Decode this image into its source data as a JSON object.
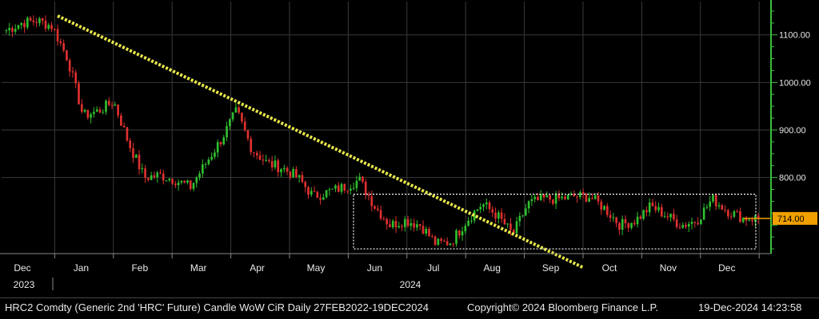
{
  "chart_data": {
    "type": "candlestick",
    "ylim": [
      640,
      1170
    ],
    "y_ticks": [
      1100,
      1000,
      900,
      800
    ],
    "last_price_label": "714.00",
    "month_labels": [
      "Dec",
      "Jan",
      "Feb",
      "Mar",
      "Apr",
      "May",
      "Jun",
      "Jul",
      "Aug",
      "Sep",
      "Oct",
      "Nov",
      "Dec"
    ],
    "year_labels": [
      "2023",
      "2024"
    ],
    "trendline": {
      "from": {
        "x": "Dec 2023",
        "y": 1140
      },
      "to": {
        "x": "Sep 2024",
        "y": 610
      }
    },
    "range_box": {
      "x_from": "Jun 2024",
      "x_to": "Dec 2024",
      "y_from": 650,
      "y_to": 765
    },
    "approx_daily_close": [
      [
        "Dec",
        1110
      ],
      [
        "Dec",
        1125
      ],
      [
        "Dec",
        1130
      ],
      [
        "Dec",
        1118
      ],
      [
        "Jan",
        1050
      ],
      [
        "Jan",
        930
      ],
      [
        "Jan",
        940
      ],
      [
        "Jan",
        960
      ],
      [
        "Feb",
        870
      ],
      [
        "Feb",
        800
      ],
      [
        "Feb",
        805
      ],
      [
        "Feb",
        795
      ],
      [
        "Mar",
        780
      ],
      [
        "Mar",
        830
      ],
      [
        "Mar",
        880
      ],
      [
        "Mar",
        940
      ],
      [
        "Apr",
        860
      ],
      [
        "Apr",
        830
      ],
      [
        "Apr",
        820
      ],
      [
        "Apr",
        800
      ],
      [
        "May",
        760
      ],
      [
        "May",
        770
      ],
      [
        "May",
        780
      ],
      [
        "May",
        795
      ],
      [
        "Jun",
        740
      ],
      [
        "Jun",
        700
      ],
      [
        "Jun",
        710
      ],
      [
        "Jun",
        700
      ],
      [
        "Jul",
        660
      ],
      [
        "Jul",
        665
      ],
      [
        "Jul",
        710
      ],
      [
        "Jul",
        745
      ],
      [
        "Aug",
        720
      ],
      [
        "Aug",
        680
      ],
      [
        "Aug",
        745
      ],
      [
        "Aug",
        755
      ],
      [
        "Sep",
        755
      ],
      [
        "Sep",
        760
      ],
      [
        "Sep",
        760
      ],
      [
        "Sep",
        735
      ],
      [
        "Oct",
        700
      ],
      [
        "Oct",
        710
      ],
      [
        "Oct",
        740
      ],
      [
        "Oct",
        720
      ],
      [
        "Nov",
        700
      ],
      [
        "Nov",
        710
      ],
      [
        "Nov",
        755
      ],
      [
        "Nov",
        730
      ],
      [
        "Dec",
        715
      ],
      [
        "Dec",
        714
      ]
    ],
    "colors": {
      "up": "#2fbf2f",
      "down": "#e03030",
      "trendline": "#e8e84a",
      "axis": "#3bbf3b",
      "price_tag": "#f0a000"
    }
  },
  "footer": {
    "left": "HRC2 Comdty (Generic 2nd 'HRC' Future) Candle WoW CiR  Daily 27FEB2022-19DEC2024",
    "middle": "Copyright© 2024 Bloomberg Finance L.P.",
    "right": "19-Dec-2024 14:23:58"
  }
}
